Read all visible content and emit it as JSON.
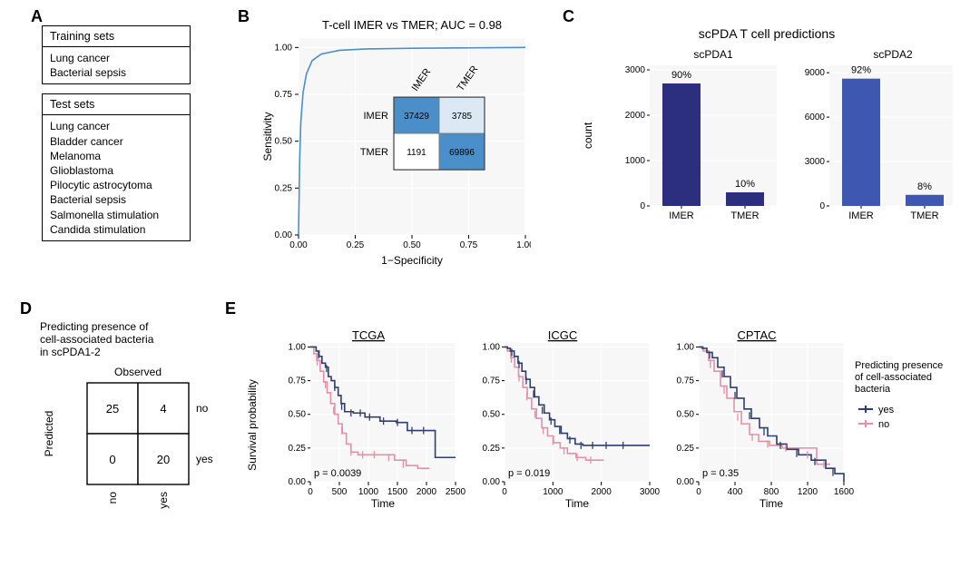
{
  "panelA": {
    "training": {
      "header": "Training sets",
      "items": [
        "Lung cancer",
        "Bacterial sepsis"
      ]
    },
    "test": {
      "header": "Test sets",
      "items": [
        "Lung cancer",
        "Bladder cancer",
        "Melanoma",
        "Glioblastoma",
        "Pilocytic astrocytoma",
        "Bacterial sepsis",
        "Salmonella stimulation",
        "Candida stimulation"
      ]
    }
  },
  "panelB": {
    "title": "T-cell IMER vs TMER; AUC = 0.98",
    "xlabel": "1−Specificity",
    "ylabel": "Sensitivity",
    "xlim": [
      0,
      1
    ],
    "ylim": [
      0,
      1.05
    ],
    "xticks": [
      0.0,
      0.25,
      0.5,
      0.75,
      1.0
    ],
    "yticks": [
      0.0,
      0.25,
      0.5,
      0.75,
      1.0
    ],
    "roc_color": "#4a8fc9",
    "roc_width": 1.6,
    "roc": [
      [
        0.0,
        0.0
      ],
      [
        0.005,
        0.4
      ],
      [
        0.01,
        0.6
      ],
      [
        0.02,
        0.76
      ],
      [
        0.035,
        0.86
      ],
      [
        0.06,
        0.93
      ],
      [
        0.1,
        0.965
      ],
      [
        0.18,
        0.985
      ],
      [
        0.3,
        0.992
      ],
      [
        0.5,
        0.996
      ],
      [
        0.75,
        0.998
      ],
      [
        1.0,
        1.0
      ]
    ],
    "matrix": {
      "rows": [
        "IMER",
        "TMER"
      ],
      "cols": [
        "IMER",
        "TMER"
      ],
      "cells": [
        [
          37429,
          3785
        ],
        [
          1191,
          69896
        ]
      ],
      "cell_colors": [
        [
          "#4a8fc9",
          "#dbe9f4"
        ],
        [
          "#ffffff",
          "#4a8fc9"
        ]
      ],
      "cell_text_colors": [
        [
          "#000",
          "#000"
        ],
        [
          "#000",
          "#000"
        ]
      ],
      "header_font": 11,
      "cell_font": 10
    },
    "axis_font": 12,
    "tick_font": 10,
    "grid_color": "#e8e8e8",
    "background": "#ffffff"
  },
  "panelC": {
    "title": "scPDA T cell predictions",
    "ylabel": "count",
    "title_font": 14,
    "label_font": 12,
    "tick_font": 10,
    "bar_width": 0.6,
    "grid_color": "#e8e8e8",
    "charts": [
      {
        "subtitle": "scPDA1",
        "categories": [
          "IMER",
          "TMER"
        ],
        "values": [
          2700,
          300
        ],
        "percent_labels": [
          "90%",
          "10%"
        ],
        "ylim": [
          0,
          3100
        ],
        "yticks": [
          0,
          1000,
          2000,
          3000
        ],
        "bar_color": "#2c2f7d"
      },
      {
        "subtitle": "scPDA2",
        "categories": [
          "IMER",
          "TMER"
        ],
        "values": [
          8600,
          750
        ],
        "percent_labels": [
          "92%",
          "8%"
        ],
        "ylim": [
          0,
          9500
        ],
        "yticks": [
          0,
          3000,
          6000,
          9000
        ],
        "bar_color": "#3e57b0"
      }
    ]
  },
  "panelD": {
    "title": "Predicting presence of cell-associated bacteria in scPDA1-2",
    "xlabel": "Observed",
    "ylabel": "Predicted",
    "row_labels": [
      "no",
      "yes"
    ],
    "col_labels": [
      "no",
      "yes"
    ],
    "cells": [
      [
        25,
        4
      ],
      [
        0,
        20
      ]
    ],
    "font": 13,
    "title_font": 12
  },
  "panelE": {
    "ylabel": "Survival probability",
    "xlabel": "Time",
    "legend_title": "Predicting presence of cell-associated bacteria",
    "legend_items": [
      {
        "label": "yes",
        "color": "#2f3e6e"
      },
      {
        "label": "no",
        "color": "#e58fa8"
      }
    ],
    "label_font": 12,
    "tick_font": 10,
    "title_font": 13,
    "line_width": 1.6,
    "grid_color": "#e8e8e8",
    "charts": [
      {
        "title": "TCGA",
        "p": "p = 0.0039",
        "xlim": [
          0,
          2500
        ],
        "xticks": [
          0,
          500,
          1000,
          1500,
          2000,
          2500
        ],
        "ylim": [
          0,
          1.03
        ],
        "yticks": [
          0.0,
          0.25,
          0.5,
          0.75,
          1.0
        ],
        "lines": {
          "yes": [
            [
              0,
              1.0
            ],
            [
              80,
              1.0
            ],
            [
              100,
              0.97
            ],
            [
              150,
              0.93
            ],
            [
              200,
              0.88
            ],
            [
              260,
              0.85
            ],
            [
              310,
              0.78
            ],
            [
              360,
              0.75
            ],
            [
              420,
              0.7
            ],
            [
              480,
              0.64
            ],
            [
              530,
              0.58
            ],
            [
              590,
              0.52
            ],
            [
              680,
              0.52
            ],
            [
              740,
              0.51
            ],
            [
              860,
              0.51
            ],
            [
              940,
              0.48
            ],
            [
              1050,
              0.48
            ],
            [
              1200,
              0.45
            ],
            [
              1340,
              0.45
            ],
            [
              1480,
              0.44
            ],
            [
              1670,
              0.38
            ],
            [
              1900,
              0.38
            ],
            [
              2000,
              0.38
            ],
            [
              2100,
              0.38
            ],
            [
              2150,
              0.18
            ],
            [
              2500,
              0.18
            ]
          ],
          "no": [
            [
              0,
              1.0
            ],
            [
              60,
              0.95
            ],
            [
              110,
              0.9
            ],
            [
              170,
              0.82
            ],
            [
              230,
              0.74
            ],
            [
              290,
              0.66
            ],
            [
              350,
              0.58
            ],
            [
              420,
              0.5
            ],
            [
              480,
              0.43
            ],
            [
              550,
              0.36
            ],
            [
              620,
              0.28
            ],
            [
              700,
              0.22
            ],
            [
              820,
              0.2
            ],
            [
              1000,
              0.2
            ],
            [
              1150,
              0.2
            ],
            [
              1250,
              0.2
            ],
            [
              1450,
              0.16
            ],
            [
              1650,
              0.12
            ],
            [
              1850,
              0.1
            ],
            [
              2050,
              0.1
            ]
          ]
        },
        "ticks_yes": [
          [
            140,
            0.94
          ],
          [
            280,
            0.84
          ],
          [
            420,
            0.7
          ],
          [
            540,
            0.56
          ],
          [
            700,
            0.51
          ],
          [
            860,
            0.51
          ],
          [
            1020,
            0.48
          ],
          [
            1260,
            0.45
          ],
          [
            1500,
            0.44
          ],
          [
            1750,
            0.38
          ],
          [
            1950,
            0.38
          ]
        ],
        "ticks_no": [
          [
            120,
            0.89
          ],
          [
            260,
            0.72
          ],
          [
            400,
            0.53
          ],
          [
            540,
            0.38
          ],
          [
            700,
            0.22
          ],
          [
            900,
            0.2
          ],
          [
            1100,
            0.2
          ],
          [
            1350,
            0.18
          ],
          [
            1600,
            0.13
          ]
        ]
      },
      {
        "title": "ICGC",
        "p": "p = 0.019",
        "xlim": [
          0,
          3000
        ],
        "xticks": [
          0,
          1000,
          2000,
          3000
        ],
        "ylim": [
          0,
          1.03
        ],
        "yticks": [
          0.0,
          0.25,
          0.5,
          0.75,
          1.0
        ],
        "lines": {
          "yes": [
            [
              0,
              1.0
            ],
            [
              60,
              0.99
            ],
            [
              120,
              0.97
            ],
            [
              200,
              0.93
            ],
            [
              280,
              0.88
            ],
            [
              360,
              0.82
            ],
            [
              440,
              0.76
            ],
            [
              530,
              0.7
            ],
            [
              620,
              0.63
            ],
            [
              710,
              0.57
            ],
            [
              820,
              0.51
            ],
            [
              930,
              0.46
            ],
            [
              1040,
              0.41
            ],
            [
              1170,
              0.36
            ],
            [
              1300,
              0.32
            ],
            [
              1460,
              0.28
            ],
            [
              1620,
              0.27
            ],
            [
              1800,
              0.27
            ],
            [
              2000,
              0.27
            ],
            [
              2300,
              0.27
            ],
            [
              2600,
              0.27
            ],
            [
              3000,
              0.27
            ]
          ],
          "no": [
            [
              0,
              1.0
            ],
            [
              60,
              0.97
            ],
            [
              130,
              0.92
            ],
            [
              210,
              0.85
            ],
            [
              290,
              0.78
            ],
            [
              380,
              0.7
            ],
            [
              470,
              0.62
            ],
            [
              560,
              0.54
            ],
            [
              660,
              0.47
            ],
            [
              770,
              0.4
            ],
            [
              890,
              0.34
            ],
            [
              1010,
              0.29
            ],
            [
              1150,
              0.25
            ],
            [
              1300,
              0.21
            ],
            [
              1480,
              0.18
            ],
            [
              1680,
              0.16
            ],
            [
              1900,
              0.16
            ],
            [
              2050,
              0.16
            ]
          ]
        },
        "ticks_yes": [
          [
            150,
            0.96
          ],
          [
            300,
            0.87
          ],
          [
            450,
            0.75
          ],
          [
            600,
            0.65
          ],
          [
            780,
            0.53
          ],
          [
            960,
            0.45
          ],
          [
            1140,
            0.38
          ],
          [
            1350,
            0.31
          ],
          [
            1580,
            0.27
          ],
          [
            1820,
            0.27
          ],
          [
            2100,
            0.27
          ],
          [
            2450,
            0.27
          ]
        ],
        "ticks_no": [
          [
            140,
            0.91
          ],
          [
            300,
            0.77
          ],
          [
            460,
            0.63
          ],
          [
            630,
            0.5
          ],
          [
            800,
            0.38
          ],
          [
            1000,
            0.3
          ],
          [
            1230,
            0.23
          ],
          [
            1500,
            0.18
          ],
          [
            1780,
            0.16
          ]
        ]
      },
      {
        "title": "CPTAC",
        "p": "p = 0.35",
        "xlim": [
          0,
          1600
        ],
        "xticks": [
          0,
          400,
          800,
          1200,
          1600
        ],
        "ylim": [
          0,
          1.03
        ],
        "yticks": [
          0.0,
          0.25,
          0.5,
          0.75,
          1.0
        ],
        "lines": {
          "yes": [
            [
              0,
              1.0
            ],
            [
              40,
              0.99
            ],
            [
              90,
              0.96
            ],
            [
              150,
              0.92
            ],
            [
              210,
              0.85
            ],
            [
              280,
              0.78
            ],
            [
              350,
              0.7
            ],
            [
              420,
              0.62
            ],
            [
              500,
              0.54
            ],
            [
              580,
              0.47
            ],
            [
              670,
              0.4
            ],
            [
              760,
              0.34
            ],
            [
              860,
              0.28
            ],
            [
              970,
              0.24
            ],
            [
              1100,
              0.2
            ],
            [
              1240,
              0.16
            ],
            [
              1400,
              0.1
            ],
            [
              1500,
              0.06
            ],
            [
              1600,
              0.0
            ]
          ],
          "no": [
            [
              0,
              1.0
            ],
            [
              50,
              0.97
            ],
            [
              110,
              0.9
            ],
            [
              170,
              0.82
            ],
            [
              240,
              0.71
            ],
            [
              310,
              0.62
            ],
            [
              390,
              0.52
            ],
            [
              470,
              0.43
            ],
            [
              560,
              0.35
            ],
            [
              660,
              0.3
            ],
            [
              780,
              0.27
            ],
            [
              920,
              0.25
            ],
            [
              1100,
              0.25
            ],
            [
              1300,
              0.13
            ],
            [
              1450,
              0.13
            ]
          ]
        },
        "ticks_yes": [
          [
            120,
            0.94
          ],
          [
            260,
            0.8
          ],
          [
            400,
            0.64
          ],
          [
            560,
            0.49
          ],
          [
            720,
            0.37
          ],
          [
            900,
            0.27
          ],
          [
            1080,
            0.21
          ],
          [
            1280,
            0.15
          ],
          [
            1480,
            0.07
          ]
        ],
        "ticks_no": [
          [
            130,
            0.87
          ],
          [
            280,
            0.68
          ],
          [
            430,
            0.48
          ],
          [
            590,
            0.33
          ],
          [
            760,
            0.28
          ],
          [
            960,
            0.25
          ],
          [
            1200,
            0.2
          ],
          [
            1380,
            0.13
          ]
        ]
      }
    ]
  },
  "colors": {
    "black": "#000000"
  }
}
